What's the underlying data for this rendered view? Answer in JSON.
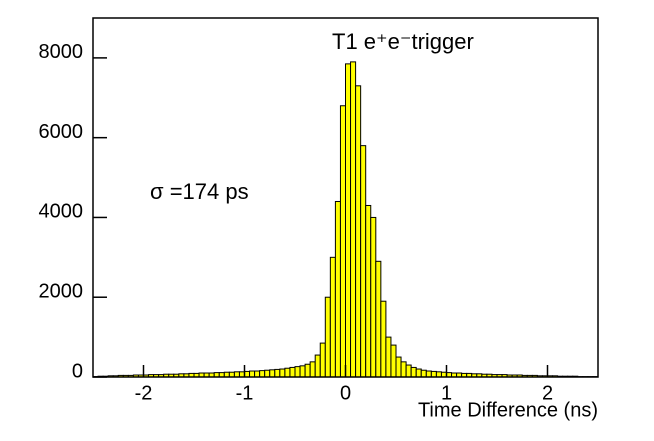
{
  "chart_data": {
    "type": "histogram",
    "annotations": [
      "T1 e⁺e⁻trigger",
      "σ =174 ps"
    ],
    "x_label": "Time Difference (ns)",
    "bins": [
      -2.5,
      -2.45,
      -2.4,
      -2.35,
      -2.3,
      -2.25,
      -2.2,
      -2.15,
      -2.1,
      -2.05,
      -2.0,
      -1.95,
      -1.9,
      -1.85,
      -1.8,
      -1.75,
      -1.7,
      -1.65,
      -1.6,
      -1.55,
      -1.5,
      -1.45,
      -1.4,
      -1.35,
      -1.3,
      -1.25,
      -1.2,
      -1.15,
      -1.1,
      -1.05,
      -1.0,
      -0.95,
      -0.9,
      -0.85,
      -0.8,
      -0.75,
      -0.7,
      -0.65,
      -0.6,
      -0.55,
      -0.5,
      -0.45,
      -0.4,
      -0.35,
      -0.3,
      -0.25,
      -0.2,
      -0.15,
      -0.1,
      -0.05,
      0,
      0.05,
      0.1,
      0.15,
      0.2,
      0.25,
      0.3,
      0.35,
      0.4,
      0.45,
      0.5,
      0.55,
      0.6,
      0.65,
      0.7,
      0.75,
      0.8,
      0.85,
      0.9,
      0.95,
      1.0,
      1.05,
      1.1,
      1.15,
      1.2,
      1.25,
      1.3,
      1.35,
      1.4,
      1.45,
      1.5,
      1.55,
      1.6,
      1.65,
      1.7,
      1.75,
      1.8,
      1.85,
      1.9,
      1.95,
      2.0,
      2.05,
      2.1,
      2.15,
      2.2,
      2.25,
      2.3,
      2.35,
      2.4,
      2.45,
      2.5
    ],
    "values": [
      10,
      20,
      20,
      30,
      30,
      40,
      40,
      40,
      50,
      50,
      50,
      60,
      60,
      60,
      70,
      70,
      70,
      80,
      80,
      90,
      90,
      100,
      100,
      100,
      110,
      110,
      120,
      120,
      130,
      130,
      140,
      150,
      150,
      160,
      170,
      180,
      190,
      200,
      220,
      240,
      260,
      280,
      320,
      380,
      550,
      850,
      2000,
      3000,
      4400,
      6800,
      7850,
      7900,
      7300,
      5800,
      4300,
      4000,
      2900,
      1900,
      1000,
      800,
      500,
      380,
      300,
      240,
      200,
      170,
      150,
      140,
      130,
      120,
      110,
      100,
      100,
      90,
      90,
      80,
      80,
      70,
      70,
      60,
      60,
      60,
      50,
      50,
      50,
      40,
      40,
      40,
      30,
      30,
      30,
      30,
      20,
      20,
      20,
      20,
      10,
      10,
      10,
      10
    ],
    "color": "#ffff00",
    "xlim": [
      -2.5,
      2.5
    ],
    "xticks": [
      -2,
      -1,
      0,
      1,
      2
    ],
    "ylim": [
      0,
      9000
    ],
    "yticks": [
      0,
      2000,
      4000,
      6000,
      8000
    ],
    "grid": false
  }
}
